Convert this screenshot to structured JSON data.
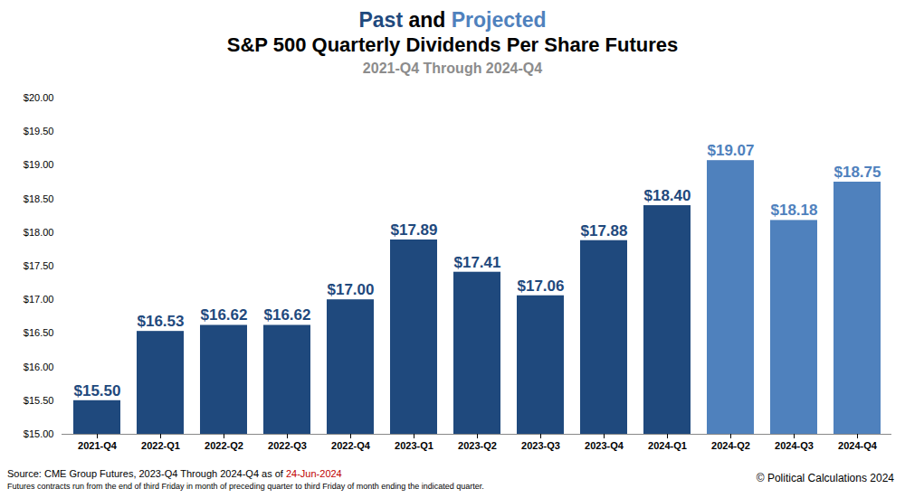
{
  "chart_data": {
    "type": "bar",
    "title": [
      "Past and Projected",
      "S&P 500 Quarterly Dividends Per Share Futures"
    ],
    "subtitle": "2021-Q4 Through 2024-Q4",
    "source": "Source:  CME Group Futures, 2023-Q4 Through 2024-Q4 as of",
    "source_date": "24-Jun-2024",
    "note": "Futures contracts run from the end of third Friday in month of preceding quarter to third Friday of month ending the indicated quarter.",
    "copyright": "© Political Calculations 2024",
    "categories": [
      "2021-Q4",
      "2022-Q1",
      "2022-Q2",
      "2022-Q3",
      "2022-Q4",
      "2023-Q1",
      "2023-Q2",
      "2023-Q3",
      "2023-Q4",
      "2024-Q1",
      "2024-Q2",
      "2024-Q3",
      "2024-Q4"
    ],
    "series": [
      {
        "name": "Past",
        "color": "#1f497d",
        "values": [
          15.5,
          16.53,
          16.62,
          16.62,
          17.0,
          17.89,
          17.41,
          17.06,
          17.88,
          18.4,
          null,
          null,
          null
        ],
        "value_labels": [
          "$15.50",
          "$16.53",
          "$16.62",
          "$16.62",
          "$17.00",
          "$17.89",
          "$17.41",
          "$17.06",
          "$17.88",
          "$18.40",
          null,
          null,
          null
        ]
      },
      {
        "name": "Projected",
        "color": "#4f81bd",
        "values": [
          null,
          null,
          null,
          null,
          null,
          null,
          null,
          null,
          null,
          null,
          19.07,
          18.18,
          18.75
        ],
        "value_labels": [
          null,
          null,
          null,
          null,
          null,
          null,
          null,
          null,
          null,
          null,
          "$19.07",
          "$18.18",
          "$18.75"
        ]
      }
    ],
    "ylim": [
      15,
      20
    ],
    "yticks": [
      {
        "value": 15,
        "label": "$15.00"
      },
      {
        "value": 15.5,
        "label": "$15.50"
      },
      {
        "value": 16,
        "label": "$16.00"
      },
      {
        "value": 16.5,
        "label": "$16.50"
      },
      {
        "value": 17,
        "label": "$17.00"
      },
      {
        "value": 17.5,
        "label": "$17.50"
      },
      {
        "value": 18,
        "label": "$18.00"
      },
      {
        "value": 18.5,
        "label": "$18.50"
      },
      {
        "value": 19,
        "label": "$19.00"
      },
      {
        "value": 19.5,
        "label": "$19.50"
      },
      {
        "value": 20,
        "label": "$20.00"
      }
    ],
    "grid": false,
    "data_labels": true
  }
}
